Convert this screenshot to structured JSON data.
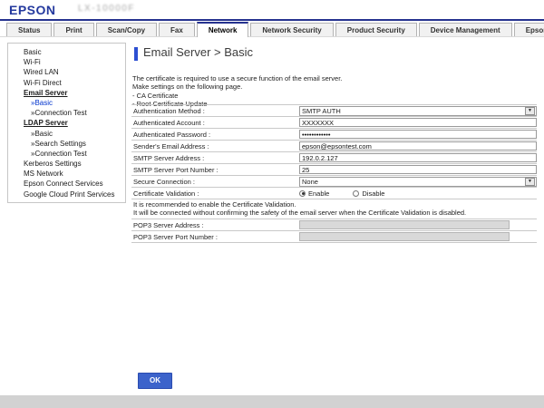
{
  "header": {
    "logo": "EPSON",
    "model": "LX-10000F"
  },
  "tabs": {
    "active_index": 4,
    "items": [
      "Status",
      "Print",
      "Scan/Copy",
      "Fax",
      "Network",
      "Network Security",
      "Product Security",
      "Device Management",
      "Epson Open Platform"
    ]
  },
  "sidebar": {
    "items": [
      {
        "id": "basic",
        "label": "Basic",
        "level": 0
      },
      {
        "id": "wi-fi",
        "label": "Wi-Fi",
        "level": 0
      },
      {
        "id": "wired-lan",
        "label": "Wired LAN",
        "level": 0
      },
      {
        "id": "wi-fi-direct",
        "label": "Wi-Fi Direct",
        "level": 0
      },
      {
        "id": "email-server",
        "label": "Email Server",
        "level": 0,
        "bold": true
      },
      {
        "id": "email-server-basic",
        "label": "»Basic",
        "level": 1,
        "active": true
      },
      {
        "id": "email-server-connection-test",
        "label": "»Connection Test",
        "level": 1
      },
      {
        "id": "ldap-server",
        "label": "LDAP Server",
        "level": 0,
        "bold": true
      },
      {
        "id": "ldap-server-basic",
        "label": "»Basic",
        "level": 1
      },
      {
        "id": "ldap-server-search-settings",
        "label": "»Search Settings",
        "level": 1
      },
      {
        "id": "ldap-server-connection-test",
        "label": "»Connection Test",
        "level": 1
      },
      {
        "id": "kerberos-settings",
        "label": "Kerberos Settings",
        "level": 0
      },
      {
        "id": "ms-network",
        "label": "MS Network",
        "level": 0
      },
      {
        "id": "epson-connect-services",
        "label": "Epson Connect Services",
        "level": 0
      },
      {
        "id": "google-cloud-print-services",
        "label": "Google Cloud Print Services",
        "level": 0
      }
    ]
  },
  "main": {
    "title": "Email Server > Basic",
    "description": [
      "The certificate is required to use a secure function of the email server.",
      "Make settings on the following page.",
      "- CA Certificate",
      "- Root Certificate Update"
    ],
    "form_rows": [
      {
        "id": "authentication-method",
        "label": "Authentication Method :",
        "type": "select",
        "value": "SMTP AUTH"
      },
      {
        "id": "authenticated-account",
        "label": "Authenticated Account :",
        "type": "text",
        "value": "XXXXXXX"
      },
      {
        "id": "authenticated-password",
        "label": "Authenticated Password :",
        "type": "password",
        "value": "••••••••••••"
      },
      {
        "id": "senders-email-address",
        "label": "Sender's Email Address :",
        "type": "text",
        "value": "epson@epsontest.com"
      },
      {
        "id": "smtp-server-address",
        "label": "SMTP Server Address :",
        "type": "text",
        "value": "192.0.2.127"
      },
      {
        "id": "smtp-server-port-number",
        "label": "SMTP Server Port Number :",
        "type": "text",
        "value": "25"
      },
      {
        "id": "secure-connection",
        "label": "Secure Connection :",
        "type": "select",
        "value": "None"
      },
      {
        "id": "certificate-validation",
        "label": "Certificate Validation :",
        "type": "radio",
        "options": [
          "Enable",
          "Disable"
        ],
        "selected": "Enable"
      }
    ],
    "note": [
      "It is recommended to enable the Certificate Validation.",
      "It will be connected without confirming the safety of the email server when the Certificate Validation is disabled."
    ],
    "form_rows_bottom": [
      {
        "id": "pop3-server-address",
        "label": "POP3 Server Address :",
        "type": "disabled",
        "value": ""
      },
      {
        "id": "pop3-server-port-number",
        "label": "POP3 Server Port Number :",
        "type": "disabled",
        "value": ""
      }
    ],
    "ok_label": "OK"
  },
  "colors": {
    "accent_blue": "#2d4fd2",
    "navy_line": "#26338f",
    "link_blue": "#0033cc",
    "ok_button": "#3c63cb",
    "logo_blue": "#24399e"
  }
}
